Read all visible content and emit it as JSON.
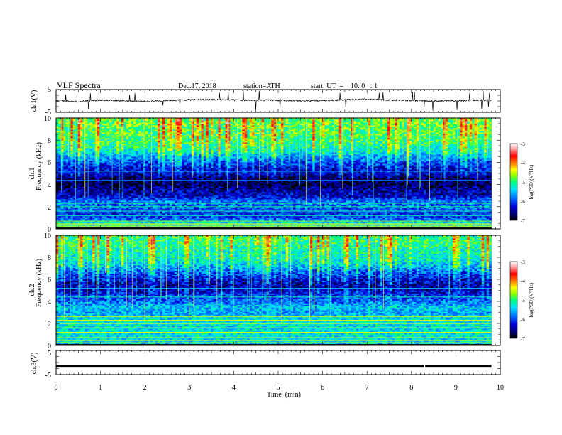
{
  "header": {
    "title": "VLF  Spectra",
    "date": "Dec.17, 2018",
    "station": "station=ATH",
    "start_ut": "start  UT  =    10: 0   : 1"
  },
  "panels": {
    "ch1_wave": {
      "ylabel": "ch.1(V)",
      "yticks": [
        "5",
        "-5"
      ]
    },
    "ch1_spec": {
      "ylabel_top": "ch.1",
      "ylabel": "Frequency  (kHz)",
      "yticks": [
        "10",
        "8",
        "6",
        "4",
        "2",
        "0"
      ]
    },
    "ch2_spec": {
      "ylabel_top": "ch.2",
      "ylabel": "Frequency  (kHz)",
      "yticks": [
        "10",
        "8",
        "6",
        "4",
        "2",
        "0"
      ]
    },
    "ch3_wave": {
      "ylabel": "ch.3(V)",
      "yticks": [
        "5",
        "-5"
      ]
    }
  },
  "xaxis": {
    "label": "Time  (min)",
    "ticks": [
      "0",
      "1",
      "2",
      "3",
      "4",
      "5",
      "6",
      "7",
      "8",
      "9",
      "10"
    ]
  },
  "colorbar": {
    "label": "log(PSD)(V²/Hz)",
    "ticks": [
      "-3",
      "-4",
      "-5",
      "-6",
      "-7"
    ]
  },
  "colors": {
    "scale": [
      "#000000",
      "#000070",
      "#0000d8",
      "#0066ff",
      "#00e0ff",
      "#00ff80",
      "#90ff00",
      "#ffff00",
      "#ff8000",
      "#ff0000",
      "#ffffff"
    ],
    "trace": "#000000"
  },
  "chart_data": [
    {
      "type": "line",
      "name": "ch.1 waveform",
      "xlabel": "Time  (min)",
      "ylabel": "ch.1(V)",
      "xlim": [
        0,
        10
      ],
      "ylim": [
        -5,
        5
      ],
      "x": [
        0,
        0.5,
        1,
        1.5,
        2,
        2.5,
        3,
        3.5,
        4,
        4.5,
        5,
        5.5,
        6,
        6.5,
        7,
        7.5,
        8,
        8.5,
        9,
        9.5,
        9.8
      ],
      "y": [
        0.2,
        -0.3,
        0.4,
        0.1,
        -0.2,
        0.2,
        0.5,
        0.6,
        0.4,
        0.3,
        0.3,
        0.1,
        0.2,
        0.5,
        0.7,
        0.4,
        0.2,
        0.0,
        0.1,
        0.3,
        0.4
      ]
    },
    {
      "type": "heatmap",
      "name": "ch.1 spectrogram",
      "xlabel": "Time  (min)",
      "ylabel": "Frequency  (kHz)",
      "xlim": [
        0,
        10
      ],
      "ylim": [
        0,
        10
      ],
      "data_end_min": 9.8,
      "z_label": "log(PSD)(V²/Hz)",
      "zlim": [
        -7,
        -3
      ],
      "freq_kHz": [
        0.5,
        1,
        1.5,
        2,
        2.5,
        3,
        3.5,
        4,
        4.5,
        5,
        5.5,
        6,
        6.5,
        7,
        7.5,
        8,
        8.5,
        9,
        9.5
      ],
      "mean_log_psd": [
        -5.3,
        -6.0,
        -6.1,
        -5.9,
        -5.8,
        -6.4,
        -6.5,
        -6.8,
        -6.8,
        -6.4,
        -6.3,
        -6.0,
        -5.7,
        -5.3,
        -5.1,
        -5.0,
        -4.9,
        -4.9,
        -4.8
      ]
    },
    {
      "type": "heatmap",
      "name": "ch.2 spectrogram",
      "xlabel": "Time  (min)",
      "ylabel": "Frequency  (kHz)",
      "xlim": [
        0,
        10
      ],
      "ylim": [
        0,
        10
      ],
      "data_end_min": 9.8,
      "z_label": "log(PSD)(V²/Hz)",
      "zlim": [
        -7,
        -3
      ],
      "freq_kHz": [
        0.5,
        1,
        1.5,
        2,
        2.5,
        3,
        3.5,
        4,
        4.5,
        5,
        5.5,
        6,
        6.5,
        7,
        7.5,
        8,
        8.5,
        9,
        9.5
      ],
      "mean_log_psd": [
        -5.4,
        -5.3,
        -5.4,
        -5.3,
        -5.4,
        -5.6,
        -5.5,
        -5.9,
        -6.1,
        -6.4,
        -6.5,
        -6.3,
        -6.0,
        -5.7,
        -5.4,
        -5.2,
        -5.2,
        -5.1,
        -5.0
      ]
    },
    {
      "type": "line",
      "name": "ch.3 waveform",
      "xlabel": "Time  (min)",
      "ylabel": "ch.3(V)",
      "xlim": [
        0,
        10
      ],
      "ylim": [
        -5,
        5
      ],
      "x": [
        0,
        8.29,
        8.31,
        9.8
      ],
      "y": [
        -1.5,
        -1.5,
        -1.5,
        -1.5
      ]
    }
  ]
}
